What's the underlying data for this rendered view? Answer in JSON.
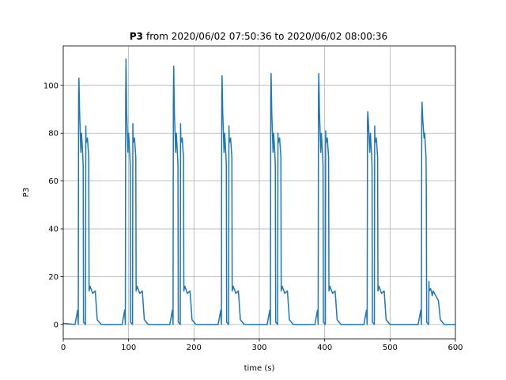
{
  "chart_data": {
    "type": "line",
    "title_bold": "P3",
    "title": "from 2020/06/02 07:50:36 to 2020/06/02 08:00:36",
    "xlabel": "time (s)",
    "ylabel": "P3",
    "xlim": [
      0,
      600
    ],
    "ylim": [
      -6,
      116.5
    ],
    "xticks": [
      0,
      100,
      200,
      300,
      400,
      500,
      600
    ],
    "yticks": [
      0,
      20,
      40,
      60,
      80,
      100
    ],
    "grid": true,
    "series": [
      {
        "name": "P3",
        "color": "#1f77b4",
        "x": [
          0,
          18,
          22,
          23,
          23.5,
          24,
          25,
          27,
          28,
          30,
          30.5,
          31,
          34,
          34.5,
          35,
          37,
          39,
          39.5,
          41,
          45,
          49,
          52,
          58,
          90,
          94,
          95,
          95.5,
          96,
          97,
          99,
          100,
          102,
          102.5,
          103,
          106,
          106.5,
          107,
          109,
          111,
          111.5,
          113,
          117,
          121,
          124,
          130,
          163,
          167,
          168,
          168.5,
          169,
          170,
          172,
          173,
          175,
          175.5,
          176,
          179,
          179.5,
          180,
          182,
          184,
          184.5,
          186,
          190,
          194,
          197,
          203,
          237,
          241,
          242,
          242.5,
          243,
          244,
          246,
          247,
          249,
          249.5,
          250,
          253,
          253.5,
          254,
          256,
          258,
          258.5,
          260,
          264,
          268,
          271,
          277,
          312,
          316,
          317,
          317.5,
          318,
          319,
          321,
          322,
          324,
          324.5,
          325,
          328,
          328.5,
          329,
          331,
          333,
          333.5,
          335,
          339,
          343,
          346,
          352,
          385,
          389,
          390,
          390.5,
          391,
          392,
          394,
          395,
          397,
          397.5,
          398,
          401,
          401.5,
          402,
          404,
          406,
          406.5,
          408,
          412,
          416,
          419,
          425,
          460,
          464,
          465,
          465.5,
          466,
          467,
          469,
          470,
          472,
          472.5,
          473,
          476,
          476.5,
          477,
          479,
          481,
          481.5,
          483,
          487,
          491,
          494,
          500,
          543,
          547,
          548,
          548.5,
          549,
          550,
          552,
          553,
          555,
          555.5,
          556,
          559,
          559.5,
          560,
          562,
          564,
          564.5,
          566,
          570,
          574,
          577,
          583,
          600
        ],
        "values": [
          0.5,
          0,
          6,
          0,
          95,
          103,
          89,
          72,
          80,
          70,
          66,
          1,
          0,
          83,
          76,
          78,
          70,
          14,
          16,
          13,
          14,
          2,
          0,
          0,
          6,
          0,
          95,
          111,
          89,
          72,
          80,
          70,
          66,
          1,
          0,
          84,
          76,
          78,
          70,
          14,
          16,
          13,
          14,
          2,
          0,
          0,
          6,
          0,
          95,
          108,
          89,
          72,
          80,
          70,
          66,
          1,
          0,
          84,
          76,
          78,
          70,
          14,
          16,
          13,
          14,
          2,
          0,
          0,
          6,
          0,
          95,
          104,
          89,
          72,
          80,
          70,
          66,
          1,
          0,
          83,
          76,
          78,
          70,
          14,
          16,
          13,
          14,
          2,
          0,
          0,
          6,
          0,
          95,
          105,
          89,
          72,
          80,
          70,
          66,
          1,
          0,
          80,
          76,
          78,
          70,
          14,
          16,
          13,
          14,
          2,
          0,
          0,
          6,
          0,
          95,
          105,
          89,
          72,
          80,
          70,
          66,
          1,
          0,
          81,
          76,
          78,
          70,
          14,
          16,
          13,
          14,
          2,
          0,
          0,
          6,
          0,
          85,
          89,
          84,
          72,
          80,
          70,
          66,
          1,
          0,
          83,
          76,
          78,
          70,
          14,
          16,
          13,
          14,
          2,
          0,
          0,
          6,
          0,
          88,
          93,
          86,
          78,
          80,
          70,
          55,
          1,
          0,
          18,
          14,
          15,
          13,
          12,
          14,
          12,
          10,
          2,
          0,
          0
        ]
      }
    ]
  }
}
